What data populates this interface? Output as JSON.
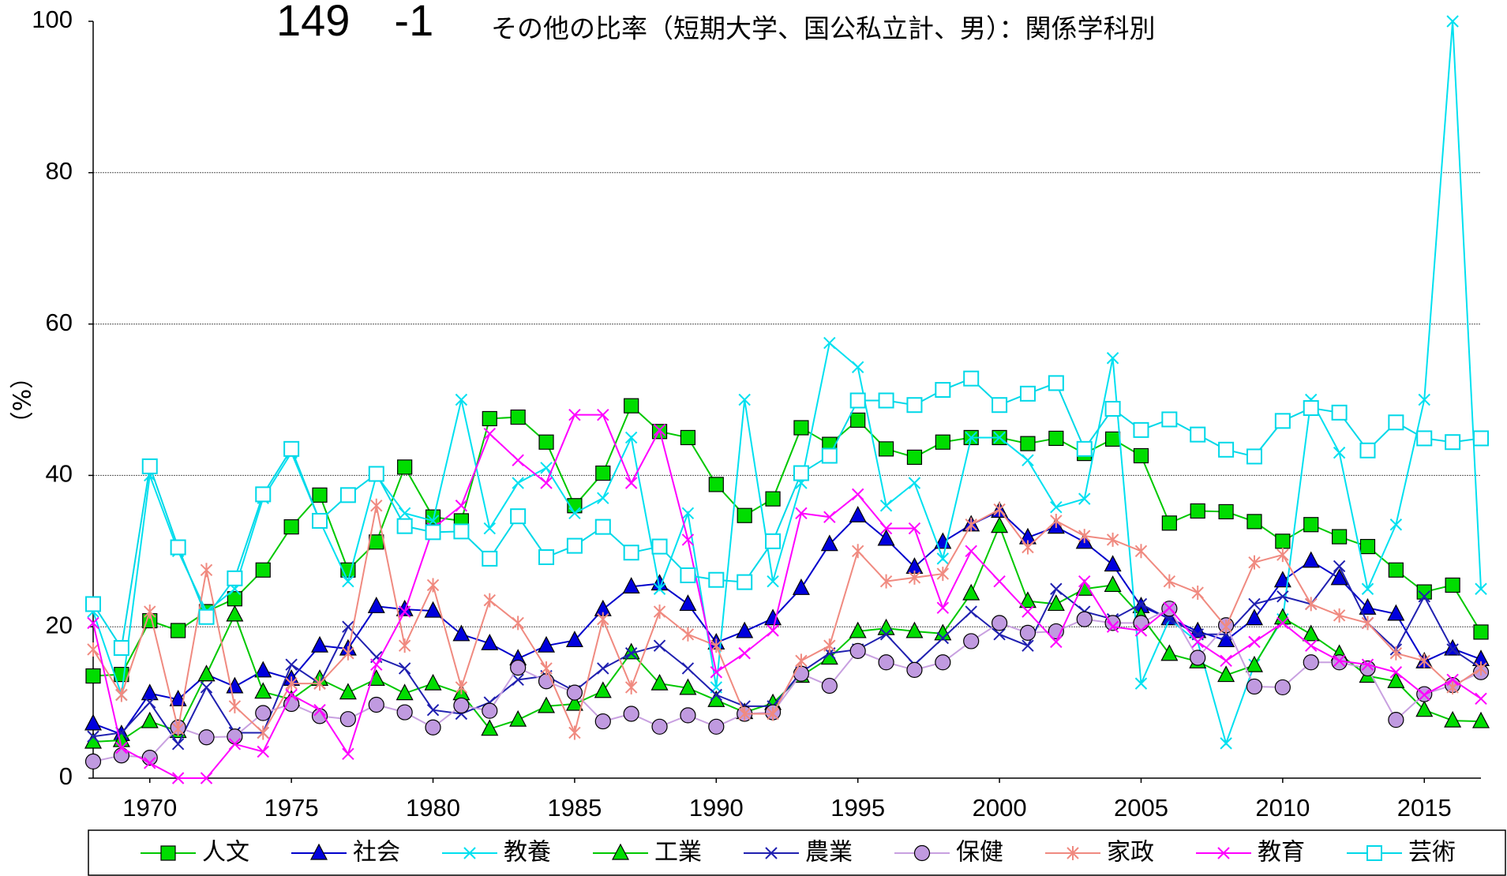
{
  "chart_data": {
    "type": "line",
    "table_number": "149　-1",
    "title": "その他の比率（短期大学、国公私立計、男）：関係学科別",
    "y_label": "（%）",
    "x": [
      1968,
      1969,
      1970,
      1971,
      1972,
      1973,
      1974,
      1975,
      1976,
      1977,
      1978,
      1979,
      1980,
      1981,
      1982,
      1983,
      1984,
      1985,
      1986,
      1987,
      1988,
      1989,
      1990,
      1991,
      1992,
      1993,
      1994,
      1995,
      1996,
      1997,
      1998,
      1999,
      2000,
      2001,
      2002,
      2003,
      2004,
      2005,
      2006,
      2007,
      2008,
      2009,
      2010,
      2011,
      2012,
      2013,
      2014,
      2015,
      2016,
      2017
    ],
    "xlim": [
      1968,
      2017
    ],
    "xticks": [
      1970,
      1975,
      1980,
      1985,
      1990,
      1995,
      2000,
      2005,
      2010,
      2015
    ],
    "ylim": [
      0,
      100
    ],
    "yticks": [
      0,
      20,
      40,
      60,
      80,
      100
    ],
    "grid": true,
    "legend": "bottom",
    "series": [
      {
        "name": "人文",
        "color": "#00c800",
        "marker": "square",
        "marker_fill": "#00dd00",
        "values": [
          13.5,
          13.7,
          20.8,
          19.5,
          22,
          23.7,
          27.5,
          33.2,
          37.4,
          27.5,
          31.2,
          41.1,
          34.5,
          34,
          47.5,
          47.7,
          44.4,
          36,
          40.3,
          49.2,
          45.8,
          45,
          38.8,
          34.7,
          36.9,
          46.3,
          44.1,
          47.3,
          43.5,
          42.4,
          44.4,
          45,
          45,
          44.2,
          44.9,
          42.9,
          44.8,
          42.6,
          33.7,
          35.3,
          35.2,
          33.9,
          31.3,
          33.5,
          31.9,
          30.6,
          27.5,
          24.6,
          25.5,
          19.3
        ]
      },
      {
        "name": "社会",
        "color": "#0000cc",
        "marker": "triangle",
        "marker_fill": "#0000dd",
        "values": [
          7.2,
          5.8,
          11.2,
          10.4,
          13.7,
          12.1,
          14.2,
          13.1,
          17.5,
          17.1,
          22.7,
          22.3,
          22.1,
          19,
          17.8,
          15.8,
          17.5,
          18.2,
          22.3,
          25.3,
          25.7,
          23,
          17.9,
          19.4,
          21.1,
          25.1,
          30.9,
          34.7,
          31.6,
          27.9,
          31.2,
          33.5,
          35.3,
          31.8,
          33.2,
          31.2,
          28.2,
          22.7,
          21.1,
          19.4,
          18.2,
          21.1,
          26.1,
          28.7,
          26.4,
          22.5,
          21.7,
          15.4,
          17.1,
          15.7
        ]
      },
      {
        "name": "教養",
        "color": "#00e0f0",
        "marker": "x",
        "marker_fill": "none",
        "values": [
          22,
          11,
          40,
          30,
          22,
          25,
          37,
          43,
          34,
          26,
          40,
          35,
          34,
          50,
          33,
          39,
          41,
          35,
          37,
          45,
          25,
          35,
          12,
          50,
          26,
          39,
          57.5,
          54.3,
          36,
          39,
          29,
          45,
          45,
          42,
          35.8,
          36.9,
          55.5,
          12.5,
          21,
          18,
          4.6,
          15,
          21,
          50,
          43,
          25,
          33.5,
          50,
          100,
          25
        ]
      },
      {
        "name": "工業",
        "color": "#00c800",
        "marker": "triangle",
        "marker_fill": "#00dd00",
        "values": [
          4.8,
          5,
          7.5,
          6.2,
          13.7,
          21.6,
          11.4,
          10.4,
          13.1,
          11.3,
          13.1,
          11.2,
          12.5,
          11.2,
          6.5,
          7.7,
          9.5,
          9.8,
          11.5,
          16.6,
          12.5,
          11.9,
          10.3,
          8.7,
          9.9,
          13.5,
          15.9,
          19.4,
          19.8,
          19.4,
          19.1,
          24.4,
          33.3,
          23.4,
          23,
          25,
          25.5,
          21.4,
          16.4,
          15.4,
          13.6,
          14.9,
          21.2,
          19,
          16.4,
          13.5,
          12.8,
          9,
          7.6,
          7.5
        ]
      },
      {
        "name": "農業",
        "color": "#2020b0",
        "marker": "x",
        "marker_fill": "none",
        "values": [
          5.5,
          6,
          10,
          4.5,
          12,
          6,
          6,
          15,
          12.5,
          20,
          16,
          14.5,
          9,
          8.5,
          10,
          13,
          13.5,
          11.5,
          14.5,
          16.5,
          17.5,
          14.5,
          11,
          9.5,
          9.5,
          14,
          16.5,
          17,
          19,
          15,
          18.5,
          22,
          19,
          17.5,
          25,
          22,
          21,
          23,
          21,
          19,
          19,
          23,
          24,
          23,
          28,
          20.5,
          17,
          24,
          17,
          14.5
        ]
      },
      {
        "name": "保健",
        "color": "#c8a0e0",
        "marker": "circle",
        "marker_fill": "#c09ae0",
        "values": [
          2.2,
          3,
          2.7,
          6.7,
          5.4,
          5.5,
          8.6,
          9.8,
          8.2,
          7.8,
          9.7,
          8.7,
          6.7,
          9.6,
          8.9,
          14.6,
          12.8,
          11.3,
          7.5,
          8.5,
          6.8,
          8.3,
          6.8,
          8.5,
          8.7,
          13.8,
          12.2,
          16.8,
          15.3,
          14.3,
          15.3,
          18.1,
          20.5,
          19.2,
          19.4,
          21,
          20.5,
          20.5,
          22.4,
          15.9,
          20.2,
          12.1,
          12,
          15.3,
          15.3,
          14.5,
          7.7,
          11.1,
          12.3,
          14
        ]
      },
      {
        "name": "家政",
        "color": "#f08a80",
        "marker": "asterisk",
        "marker_fill": "none",
        "values": [
          17,
          11,
          22,
          6.5,
          27.5,
          9.5,
          6,
          12.5,
          12.5,
          16.5,
          36,
          17.5,
          25.5,
          12,
          23.5,
          20.5,
          14.5,
          6,
          21,
          12,
          22,
          19,
          17.5,
          8.5,
          8.5,
          15.5,
          17.5,
          30,
          26,
          26.5,
          27,
          33.5,
          35.5,
          30.5,
          34,
          32,
          31.5,
          30,
          26,
          24.5,
          20,
          28.5,
          29.5,
          23,
          21.5,
          20.5,
          16.5,
          15.5,
          12,
          14.5
        ]
      },
      {
        "name": "教育",
        "color": "#ff00ff",
        "marker": "x",
        "marker_fill": "none",
        "values": [
          20.5,
          4,
          2,
          0,
          0,
          4.5,
          3.5,
          11,
          9,
          3.2,
          15,
          22,
          33,
          36,
          45.5,
          42,
          39,
          48,
          48,
          39,
          46,
          31.5,
          14,
          16.5,
          19.5,
          35,
          34.5,
          37.5,
          33,
          33,
          22.5,
          30,
          26,
          22,
          18,
          26,
          20,
          19.5,
          22.5,
          18,
          15.5,
          18,
          20.5,
          17.5,
          15.5,
          15,
          14,
          11,
          13,
          10.5
        ]
      },
      {
        "name": "芸術",
        "color": "#00d8e8",
        "marker": "square",
        "marker_fill": "#ffffff",
        "values": [
          23,
          17.2,
          41.2,
          30.5,
          21.3,
          26.4,
          37.5,
          43.5,
          34,
          37.4,
          40.2,
          33.3,
          32.5,
          32.6,
          29,
          34.6,
          29.2,
          30.7,
          33.2,
          29.8,
          30.6,
          26.8,
          26.2,
          25.9,
          31.3,
          40.3,
          42.6,
          49.9,
          49.9,
          49.3,
          51.3,
          52.8,
          49.3,
          50.8,
          52.2,
          43.5,
          48.8,
          46,
          47.4,
          45.4,
          43.4,
          42.5,
          47.2,
          48.9,
          48.3,
          43.3,
          47,
          44.9,
          44.4,
          44.9
        ]
      }
    ]
  }
}
